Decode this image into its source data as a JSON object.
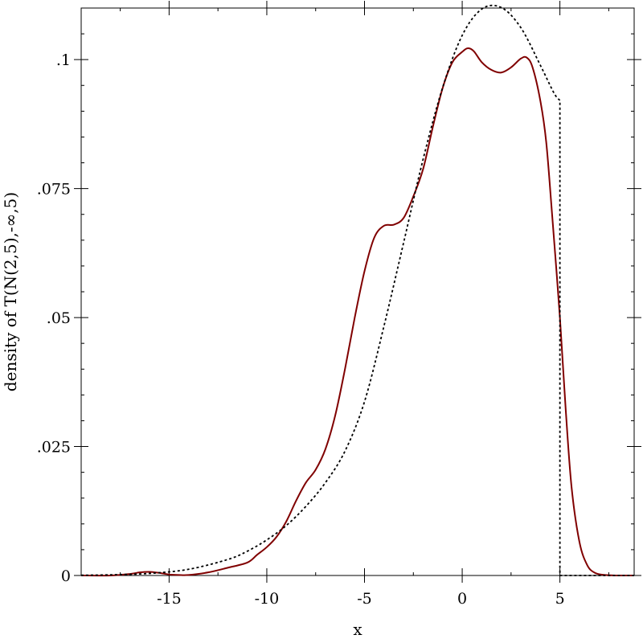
{
  "chart_data": {
    "type": "line",
    "xlabel": "x",
    "ylabel": "density of T(N(2,5),-∞,5)",
    "xlim": [
      -19.5,
      8.8
    ],
    "ylim": [
      0,
      0.11
    ],
    "x_ticks": [
      -15,
      -10,
      -5,
      0,
      5
    ],
    "x_tick_labels": [
      "-15",
      "-10",
      "-5",
      "0",
      "5"
    ],
    "y_ticks": [
      0,
      0.025,
      0.05,
      0.075,
      0.1
    ],
    "y_tick_labels": [
      "0",
      ".025",
      ".05",
      ".075",
      ".1"
    ],
    "grid": false,
    "series": [
      {
        "color": "#800000",
        "style": "solid",
        "x": [
          -19.5,
          -18.0,
          -17.0,
          -16.5,
          -16.0,
          -15.5,
          -15.0,
          -14.5,
          -14.0,
          -13.0,
          -12.0,
          -11.0,
          -10.5,
          -10.0,
          -9.5,
          -9.0,
          -8.5,
          -8.0,
          -7.5,
          -7.0,
          -6.5,
          -6.0,
          -5.5,
          -5.0,
          -4.5,
          -4.0,
          -3.5,
          -3.0,
          -2.5,
          -2.0,
          -1.5,
          -1.0,
          -0.5,
          0.0,
          0.3,
          0.6,
          1.0,
          1.5,
          2.0,
          2.5,
          3.0,
          3.3,
          3.6,
          4.0,
          4.3,
          4.6,
          5.0,
          5.3,
          5.6,
          6.0,
          6.4,
          6.8,
          7.3,
          8.0,
          8.8
        ],
        "y": [
          0.0,
          0.0,
          0.0003,
          0.0006,
          0.0007,
          0.0005,
          0.0002,
          0.0001,
          0.0001,
          0.0006,
          0.0015,
          0.0025,
          0.004,
          0.0055,
          0.0075,
          0.0105,
          0.0145,
          0.018,
          0.0205,
          0.0245,
          0.031,
          0.04,
          0.05,
          0.059,
          0.0655,
          0.0678,
          0.068,
          0.0693,
          0.0735,
          0.0788,
          0.087,
          0.0945,
          0.0995,
          0.1015,
          0.1022,
          0.1016,
          0.0995,
          0.098,
          0.0975,
          0.0985,
          0.1002,
          0.1004,
          0.0985,
          0.092,
          0.084,
          0.07,
          0.05,
          0.032,
          0.017,
          0.0065,
          0.002,
          0.0005,
          0.0001,
          0.0,
          0.0
        ]
      },
      {
        "color": "#000000",
        "style": "dotted",
        "x": [
          -19.5,
          -18.0,
          -16.0,
          -14.0,
          -12.0,
          -11.0,
          -10.0,
          -9.0,
          -8.0,
          -7.0,
          -6.0,
          -5.0,
          -4.0,
          -3.0,
          -2.0,
          -1.0,
          0.0,
          1.0,
          2.0,
          3.0,
          4.0,
          4.7,
          5.0,
          5.0,
          6.0,
          8.8
        ],
        "y": [
          5e-05,
          0.00013,
          0.0004,
          0.0012,
          0.0031,
          0.0047,
          0.0069,
          0.0097,
          0.0134,
          0.018,
          0.0241,
          0.0337,
          0.0484,
          0.0645,
          0.0807,
          0.0946,
          0.1047,
          0.1098,
          0.1101,
          0.1062,
          0.0989,
          0.0935,
          0.0921,
          0.0,
          0.0,
          0.0
        ]
      }
    ]
  }
}
